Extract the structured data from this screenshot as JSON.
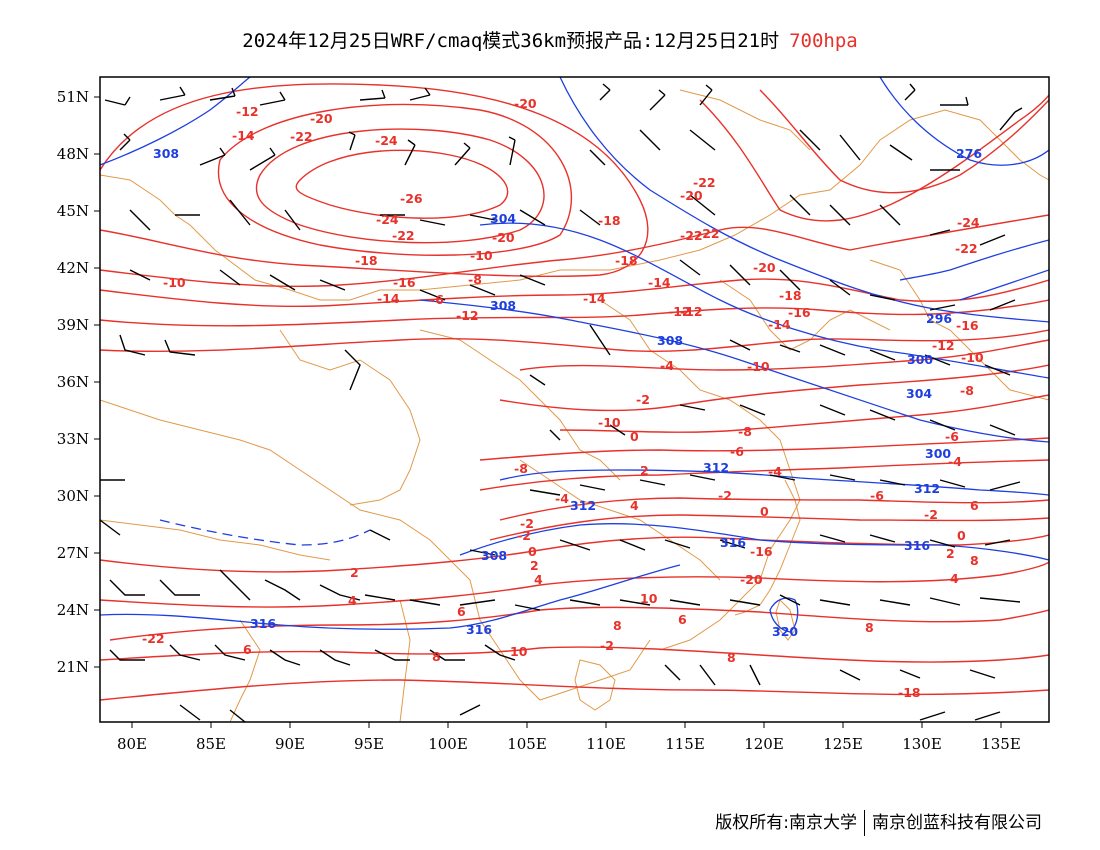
{
  "header": {
    "title": "2024年12月25日WRF/cmaq模式36km预报产品:12月25日21时",
    "level": "700hpa"
  },
  "axes": {
    "lat_labels": [
      "51N",
      "48N",
      "45N",
      "42N",
      "39N",
      "36N",
      "33N",
      "30N",
      "27N",
      "24N",
      "21N"
    ],
    "lon_labels": [
      "80E",
      "85E",
      "90E",
      "95E",
      "100E",
      "105E",
      "110E",
      "115E",
      "120E",
      "125E",
      "130E",
      "135E"
    ]
  },
  "contours": {
    "temperature_color": "#e8312a",
    "geopotential_color": "#1e3fe0",
    "border_color": "#e09a4a",
    "barb_color": "#000000",
    "temperature_labels": [
      "-20",
      "-22",
      "-24",
      "-26",
      "-24",
      "-22",
      "-20",
      "-18",
      "-16",
      "-14",
      "-12",
      "-10",
      "-18",
      "-22",
      "-22",
      "-24",
      "-22",
      "-20",
      "-20",
      "-18",
      "-16",
      "-16",
      "-14",
      "-14",
      "-12",
      "-12",
      "-10",
      "-10",
      "-8",
      "-8",
      "-6",
      "-6",
      "-4",
      "-4",
      "-2",
      "-2",
      "-2",
      "0",
      "0",
      "2",
      "2",
      "4",
      "4",
      "6",
      "6",
      "8",
      "8",
      "8",
      "10",
      "-18",
      "-20",
      "-22",
      "-14",
      "-12",
      "-10",
      "-8",
      "-6",
      "-4",
      "-2",
      "0",
      "2",
      "4",
      "6",
      "8",
      "-22",
      "-20",
      "-18",
      "-16",
      "-14",
      "-12",
      "-10",
      "-8",
      "-6",
      "-4",
      "-2",
      "0",
      "2",
      "4",
      "6",
      "8",
      "10",
      "-2"
    ],
    "geopotential_labels": [
      "308",
      "304",
      "308",
      "308",
      "300",
      "304",
      "312",
      "312",
      "316",
      "316",
      "316",
      "320",
      "276",
      "296",
      "300",
      "308",
      "312",
      "316"
    ]
  },
  "footer": {
    "left": "版权所有:南京大学",
    "right": "南京创蓝科技有限公司"
  }
}
